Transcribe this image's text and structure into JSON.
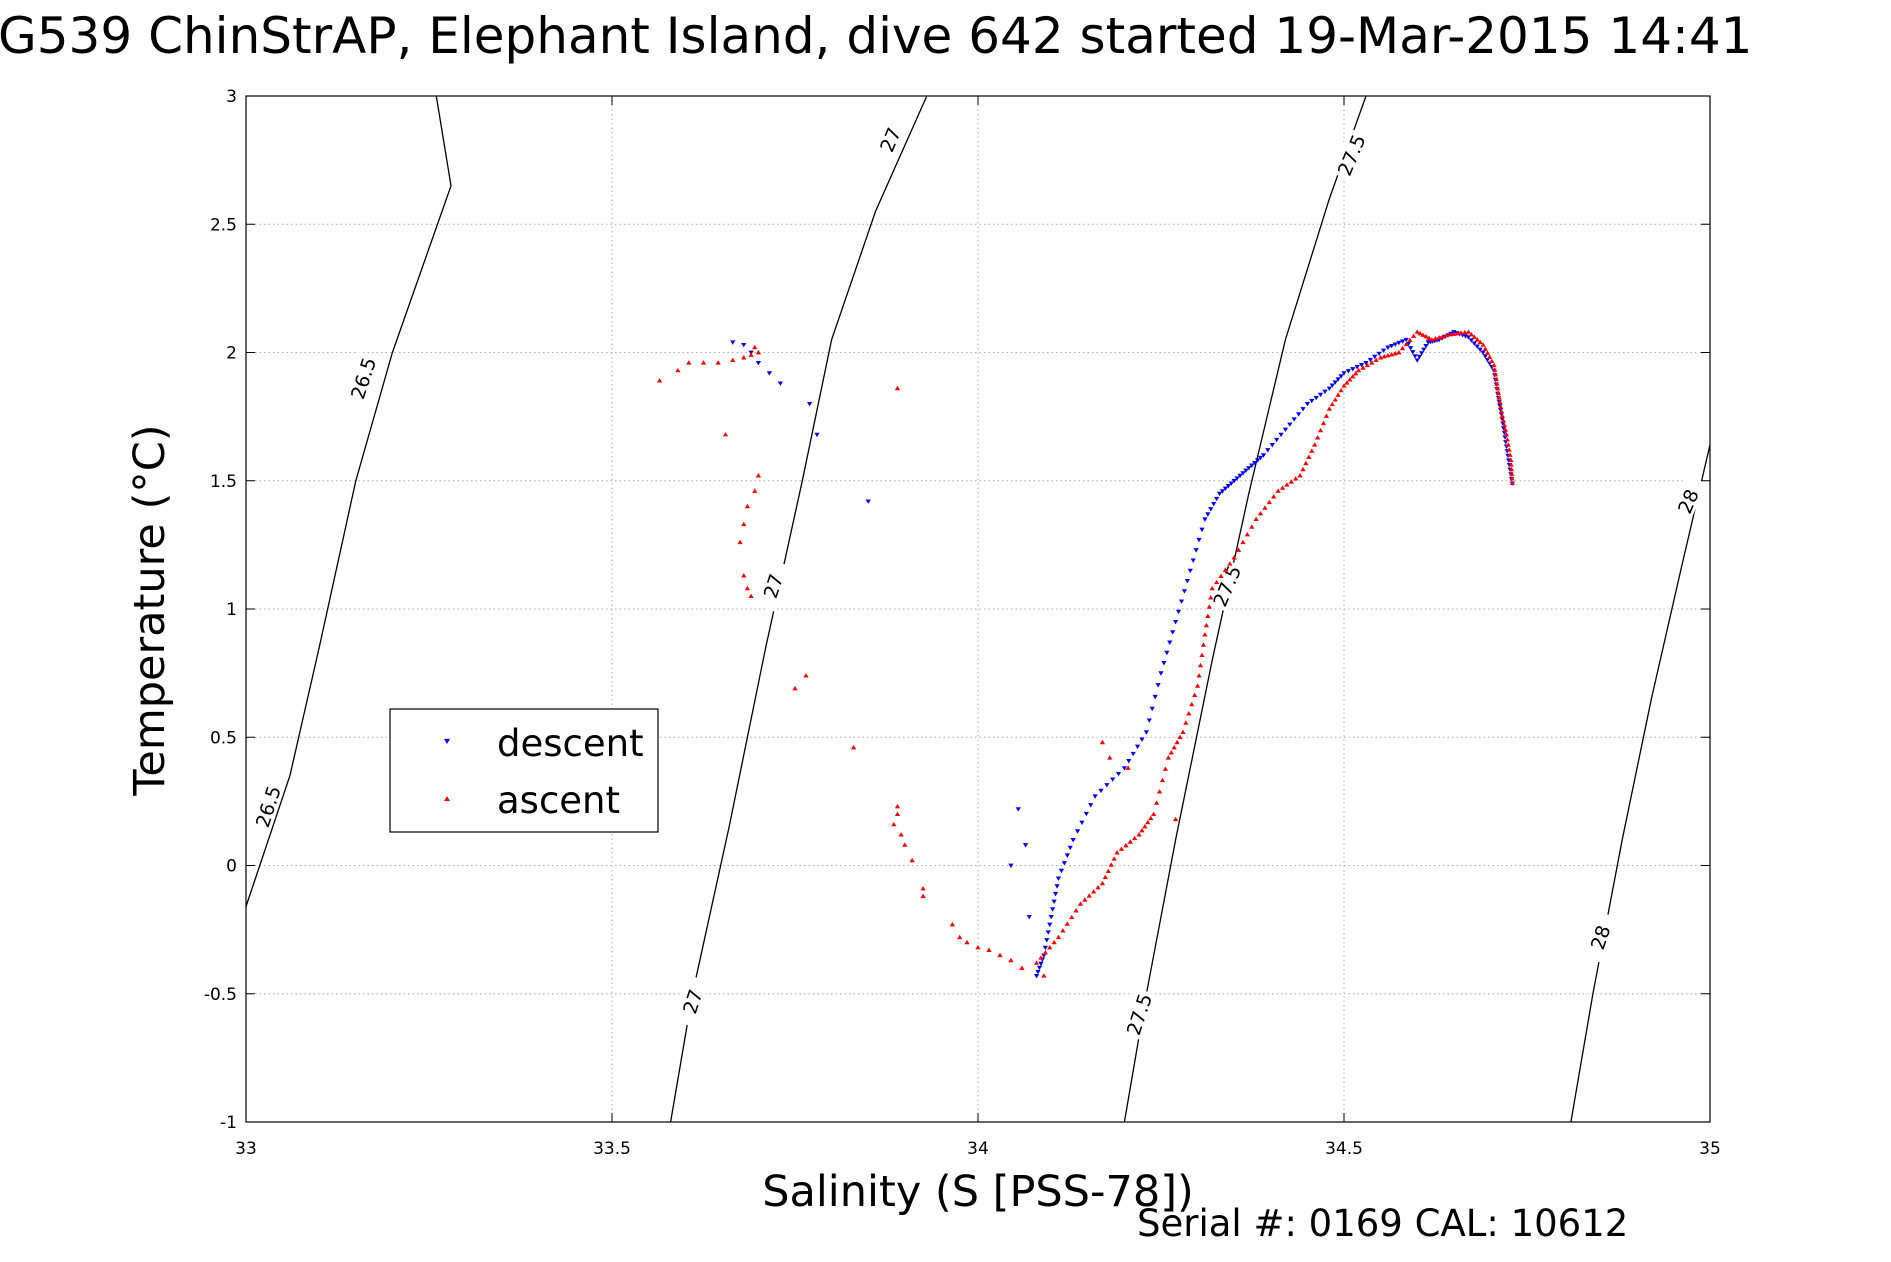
{
  "title": "G539 ChinStrAP, Elephant Island, dive 642 started 19-Mar-2015 14:41",
  "footer": "Serial #: 0169 CAL: 10612",
  "colors": {
    "descent": "#0000ff",
    "ascent": "#ff0000",
    "contour": "#000000",
    "grid": "#b0b0b0"
  },
  "chart_data": {
    "type": "scatter",
    "title": "G539 ChinStrAP, Elephant Island, dive 642 started 19-Mar-2015 14:41",
    "xlabel": "Salinity (S [PSS-78])",
    "ylabel": "Temperature (°C)",
    "xlim": [
      33,
      35
    ],
    "ylim": [
      -1,
      3
    ],
    "xticks": [
      33,
      33.5,
      34,
      34.5,
      35
    ],
    "xtick_labels": [
      "33",
      "33.5",
      "34",
      "34.5",
      "35"
    ],
    "yticks": [
      -1,
      -0.5,
      0,
      0.5,
      1,
      1.5,
      2,
      2.5,
      3
    ],
    "ytick_labels": [
      "-1",
      "-0.5",
      "0",
      "0.5",
      "1",
      "1.5",
      "2",
      "2.5",
      "3"
    ],
    "grid": true,
    "legend": {
      "position": "middle-left",
      "entries": [
        "descent",
        "ascent"
      ]
    },
    "contours": [
      {
        "level": "26.5",
        "points": [
          [
            33.0,
            -0.16
          ],
          [
            33.06,
            0.35
          ],
          [
            33.1,
            0.85
          ],
          [
            33.15,
            1.5
          ],
          [
            33.2,
            2.0
          ],
          [
            33.28,
            2.65
          ],
          [
            33.26,
            3.0
          ]
        ]
      },
      {
        "level": "27",
        "points": [
          [
            33.58,
            -1.0
          ],
          [
            33.61,
            -0.5
          ],
          [
            33.66,
            0.15
          ],
          [
            33.71,
            0.85
          ],
          [
            33.76,
            1.5
          ],
          [
            33.8,
            2.05
          ],
          [
            33.86,
            2.55
          ],
          [
            33.93,
            3.0
          ]
        ]
      },
      {
        "level": "27.5",
        "points": [
          [
            34.2,
            -1.0
          ],
          [
            34.23,
            -0.5
          ],
          [
            34.27,
            0.1
          ],
          [
            34.32,
            0.8
          ],
          [
            34.37,
            1.45
          ],
          [
            34.42,
            2.05
          ],
          [
            34.48,
            2.6
          ],
          [
            34.53,
            3.0
          ]
        ]
      },
      {
        "level": "28",
        "points": [
          [
            34.81,
            -1.0
          ],
          [
            34.84,
            -0.5
          ],
          [
            34.88,
            0.1
          ],
          [
            34.92,
            0.65
          ],
          [
            34.96,
            1.15
          ],
          [
            35.0,
            1.64
          ]
        ]
      }
    ],
    "contour_labels": [
      {
        "text": "26.5",
        "x": 33.16,
        "y": 1.9,
        "angle": -72
      },
      {
        "text": "26.5",
        "x": 33.03,
        "y": 0.23,
        "angle": -72
      },
      {
        "text": "27",
        "x": 33.88,
        "y": 2.83,
        "angle": -67
      },
      {
        "text": "27",
        "x": 33.72,
        "y": 1.09,
        "angle": -72
      },
      {
        "text": "27",
        "x": 33.61,
        "y": -0.53,
        "angle": -72
      },
      {
        "text": "27.5",
        "x": 34.51,
        "y": 2.77,
        "angle": -67
      },
      {
        "text": "27.5",
        "x": 34.34,
        "y": 1.09,
        "angle": -67
      },
      {
        "text": "27.5",
        "x": 34.22,
        "y": -0.58,
        "angle": -72
      },
      {
        "text": "28",
        "x": 34.97,
        "y": 1.42,
        "angle": -67
      },
      {
        "text": "28",
        "x": 34.85,
        "y": -0.28,
        "angle": -72
      }
    ],
    "series": [
      {
        "name": "descent",
        "marker": "triangle-down",
        "path": [
          [
            34.73,
            1.49
          ],
          [
            34.725,
            1.58
          ],
          [
            34.72,
            1.67
          ],
          [
            34.715,
            1.76
          ],
          [
            34.71,
            1.84
          ],
          [
            34.705,
            1.93
          ],
          [
            34.69,
            2.0
          ],
          [
            34.67,
            2.06
          ],
          [
            34.65,
            2.08
          ],
          [
            34.63,
            2.05
          ],
          [
            34.615,
            2.04
          ],
          [
            34.6,
            1.97
          ],
          [
            34.585,
            2.05
          ],
          [
            34.56,
            2.02
          ],
          [
            34.53,
            1.96
          ],
          [
            34.5,
            1.92
          ],
          [
            34.48,
            1.86
          ],
          [
            34.45,
            1.8
          ],
          [
            34.42,
            1.7
          ],
          [
            34.39,
            1.6
          ],
          [
            34.37,
            1.55
          ],
          [
            34.35,
            1.5
          ],
          [
            34.33,
            1.45
          ],
          [
            34.31,
            1.35
          ],
          [
            34.29,
            1.15
          ],
          [
            34.27,
            0.95
          ],
          [
            34.25,
            0.75
          ],
          [
            34.23,
            0.52
          ],
          [
            34.2,
            0.38
          ],
          [
            34.16,
            0.27
          ],
          [
            34.13,
            0.1
          ],
          [
            34.11,
            -0.05
          ],
          [
            34.1,
            -0.2
          ],
          [
            34.09,
            -0.35
          ],
          [
            34.08,
            -0.43
          ]
        ],
        "points": [
          [
            33.68,
            2.03
          ],
          [
            33.665,
            2.04
          ],
          [
            33.69,
            2.0
          ],
          [
            33.7,
            1.96
          ],
          [
            33.715,
            1.92
          ],
          [
            33.73,
            1.88
          ],
          [
            33.77,
            1.8
          ],
          [
            33.78,
            1.68
          ],
          [
            33.85,
            1.42
          ],
          [
            34.055,
            0.22
          ],
          [
            34.065,
            0.08
          ],
          [
            34.07,
            -0.2
          ],
          [
            34.045,
            0.0
          ]
        ]
      },
      {
        "name": "ascent",
        "marker": "triangle-up",
        "path": [
          [
            34.73,
            1.49
          ],
          [
            34.728,
            1.58
          ],
          [
            34.722,
            1.68
          ],
          [
            34.715,
            1.77
          ],
          [
            34.71,
            1.86
          ],
          [
            34.705,
            1.95
          ],
          [
            34.69,
            2.03
          ],
          [
            34.67,
            2.08
          ],
          [
            34.645,
            2.07
          ],
          [
            34.62,
            2.05
          ],
          [
            34.6,
            2.08
          ],
          [
            34.575,
            2.0
          ],
          [
            34.55,
            1.98
          ],
          [
            34.52,
            1.93
          ],
          [
            34.5,
            1.87
          ],
          [
            34.48,
            1.78
          ],
          [
            34.46,
            1.64
          ],
          [
            34.44,
            1.52
          ],
          [
            34.41,
            1.46
          ],
          [
            34.38,
            1.35
          ],
          [
            34.35,
            1.2
          ],
          [
            34.32,
            1.08
          ],
          [
            34.31,
            0.9
          ],
          [
            34.3,
            0.7
          ],
          [
            34.28,
            0.52
          ],
          [
            34.26,
            0.42
          ],
          [
            34.24,
            0.2
          ],
          [
            34.22,
            0.12
          ],
          [
            34.19,
            0.05
          ],
          [
            34.17,
            -0.07
          ],
          [
            34.14,
            -0.15
          ],
          [
            34.11,
            -0.28
          ],
          [
            34.08,
            -0.38
          ]
        ],
        "points": [
          [
            33.565,
            1.89
          ],
          [
            33.59,
            1.93
          ],
          [
            33.605,
            1.96
          ],
          [
            33.625,
            1.96
          ],
          [
            33.645,
            1.96
          ],
          [
            33.665,
            1.97
          ],
          [
            33.68,
            1.98
          ],
          [
            33.695,
            2.02
          ],
          [
            33.7,
            2.0
          ],
          [
            33.69,
            1.99
          ],
          [
            33.89,
            1.86
          ],
          [
            33.655,
            1.68
          ],
          [
            33.7,
            1.52
          ],
          [
            33.695,
            1.46
          ],
          [
            33.685,
            1.4
          ],
          [
            33.68,
            1.33
          ],
          [
            33.675,
            1.26
          ],
          [
            33.68,
            1.13
          ],
          [
            33.685,
            1.08
          ],
          [
            33.69,
            1.05
          ],
          [
            33.765,
            0.74
          ],
          [
            33.75,
            0.69
          ],
          [
            33.83,
            0.46
          ],
          [
            33.89,
            0.23
          ],
          [
            33.89,
            0.2
          ],
          [
            33.885,
            0.16
          ],
          [
            33.895,
            0.12
          ],
          [
            33.9,
            0.08
          ],
          [
            33.91,
            0.02
          ],
          [
            33.925,
            -0.09
          ],
          [
            33.925,
            -0.12
          ],
          [
            33.965,
            -0.23
          ],
          [
            33.975,
            -0.28
          ],
          [
            33.985,
            -0.3
          ],
          [
            34.0,
            -0.32
          ],
          [
            34.015,
            -0.33
          ],
          [
            34.03,
            -0.35
          ],
          [
            34.045,
            -0.37
          ],
          [
            34.06,
            -0.4
          ],
          [
            34.09,
            -0.43
          ],
          [
            34.17,
            0.48
          ],
          [
            34.18,
            0.42
          ],
          [
            34.205,
            0.38
          ],
          [
            34.27,
            0.18
          ]
        ]
      }
    ]
  }
}
